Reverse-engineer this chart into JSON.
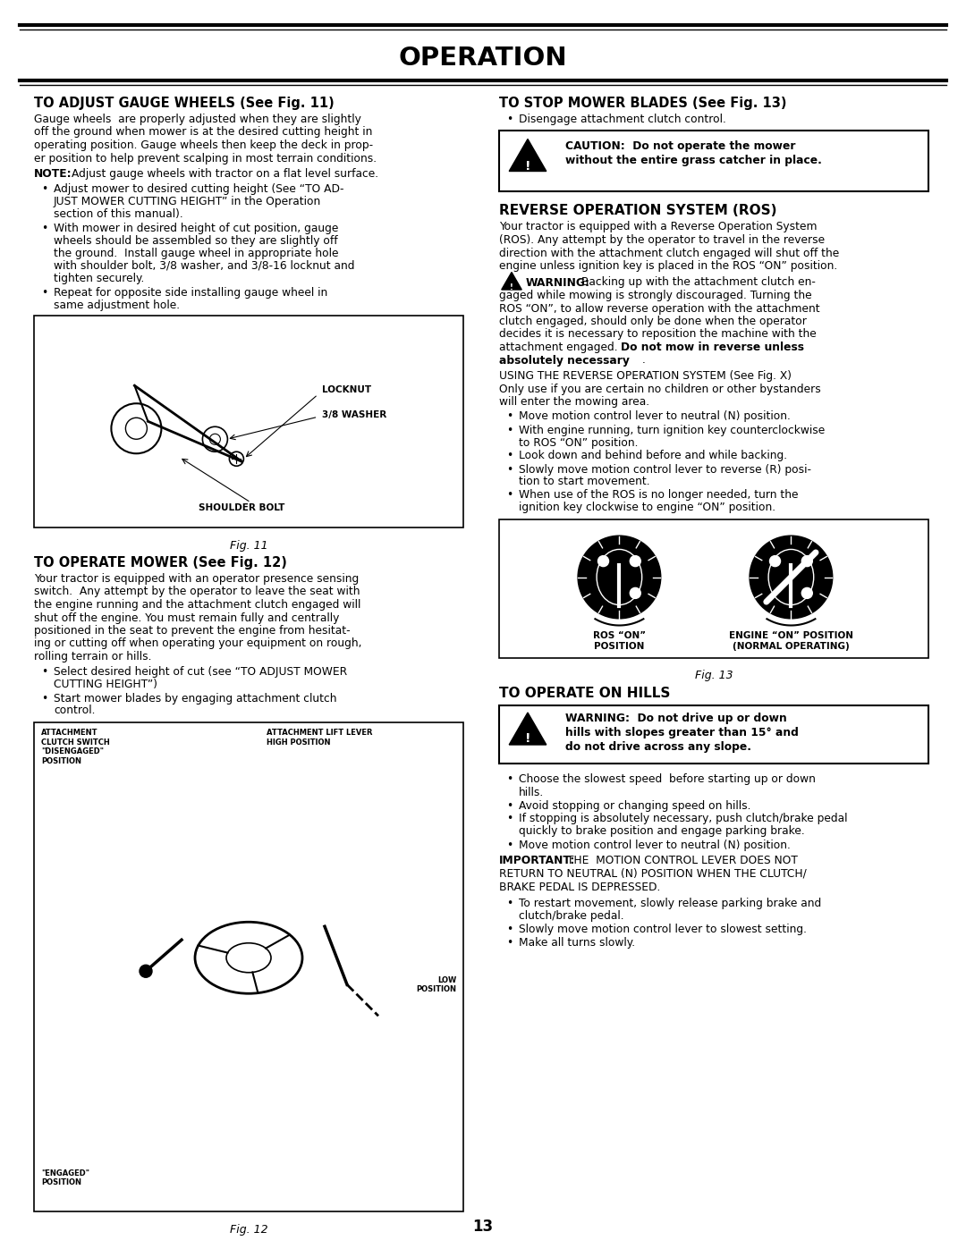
{
  "page_title": "OPERATION",
  "page_number": "13",
  "bg_color": "#ffffff",
  "section1_title": "TO ADJUST GAUGE WHEELS (See Fig. 11)",
  "section1_body_lines": [
    "Gauge wheels  are properly adjusted when they are slightly",
    "off the ground when mower is at the desired cutting height in",
    "operating position. Gauge wheels then keep the deck in prop-",
    "er position to help prevent scalping in most terrain conditions."
  ],
  "section1_note_bold": "NOTE:",
  "section1_note_rest": "Adjust gauge wheels with tractor on a flat level surface.",
  "section1_b1": [
    "Adjust mower to desired cutting height (See “TO AD-",
    "JUST MOWER CUTTING HEIGHT” in the Operation",
    "section of this manual)."
  ],
  "section1_b2": [
    "With mower in desired height of cut position, gauge",
    "wheels should be assembled so they are slightly off",
    "the ground.  Install gauge wheel in appropriate hole",
    "with shoulder bolt, 3/8 washer, and 3/8-16 locknut and",
    "tighten securely."
  ],
  "section1_b3": [
    "Repeat for opposite side installing gauge wheel in",
    "same adjustment hole."
  ],
  "fig11_caption": "Fig. 11",
  "section2_title": "TO OPERATE MOWER (See Fig. 12)",
  "section2_body_lines": [
    "Your tractor is equipped with an operator presence sensing",
    "switch.  Any attempt by the operator to leave the seat with",
    "the engine running and the attachment clutch engaged will",
    "shut off the engine. You must remain fully and centrally",
    "positioned in the seat to prevent the engine from hesitat-",
    "ing or cutting off when operating your equipment on rough,",
    "rolling terrain or hills."
  ],
  "section2_b1": [
    "Select desired height of cut (see “TO ADJUST MOWER",
    "CUTTING HEIGHT”)"
  ],
  "section2_b2": [
    "Start mower blades by engaging attachment clutch",
    "control."
  ],
  "fig12_caption": "Fig. 12",
  "section3_title": "TO STOP MOWER BLADES (See Fig. 13)",
  "section3_b1": "Disengage attachment clutch control.",
  "caution_line1": "CAUTION:  Do not operate the mower",
  "caution_line2": "without the entire grass catcher in place.",
  "section4_title": "REVERSE OPERATION SYSTEM (ROS)",
  "section4_body_lines": [
    "Your tractor is equipped with a Reverse Operation System",
    "(ROS). Any attempt by the operator to travel in the reverse",
    "direction with the attachment clutch engaged will shut off the",
    "engine unless ignition key is placed in the ROS “ON” position."
  ],
  "section4_warn_lines": [
    "gaged while mowing is strongly discouraged. Turning the",
    "ROS “ON”, to allow reverse operation with the attachment",
    "clutch engaged, should only be done when the operator",
    "decides it is necessary to reposition the machine with the",
    "attachment engaged.  "
  ],
  "section4_warn_bold": "Do not mow in reverse unless",
  "section4_warn_bold2": "absolutely necessary",
  "section4_using_lines": [
    "USING THE REVERSE OPERATION SYSTEM (See Fig. X)",
    "Only use if you are certain no children or other bystanders",
    "will enter the mowing area."
  ],
  "section4_bullets": [
    [
      "Move motion control lever to neutral (N) position."
    ],
    [
      "With engine running, turn ignition key counterclockwise",
      "to ROS “ON” position."
    ],
    [
      "Look down and behind before and while backing."
    ],
    [
      "Slowly move motion control lever to reverse (R) posi-",
      "tion to start movement."
    ],
    [
      "When use of the ROS is no longer needed, turn the",
      "ignition key clockwise to engine “ON” position."
    ]
  ],
  "fig13_caption": "Fig. 13",
  "fig13_label1_line1": "ROS “ON”",
  "fig13_label1_line2": "POSITION",
  "fig13_label2_line1": "ENGINE “ON” POSITION",
  "fig13_label2_line2": "(NORMAL OPERATING)",
  "section5_title": "TO OPERATE ON HILLS",
  "warn5_line1": "WARNING:  Do not drive up or down",
  "warn5_line2": "hills with slopes greater than 15° and",
  "warn5_line3": "do not drive across any slope.",
  "section5_bullets": [
    [
      "Choose the slowest speed  before starting up or down",
      "hills."
    ],
    [
      "Avoid stopping or changing speed on hills."
    ],
    [
      "If stopping is absolutely necessary, push clutch/brake pedal",
      "quickly to brake position and engage parking brake."
    ],
    [
      "Move motion control lever to neutral (N) position."
    ]
  ],
  "important_bold": "IMPORTANT:",
  "important_rest_lines": [
    " THE  MOTION CONTROL LEVER DOES NOT",
    "RETURN TO NEUTRAL (N) POSITION WHEN THE CLUTCH/",
    "BRAKE PEDAL IS DEPRESSED."
  ],
  "section5_b2": [
    [
      "To restart movement, slowly release parking brake and",
      "clutch/brake pedal."
    ],
    [
      "Slowly move motion control lever to slowest setting."
    ],
    [
      "Make all turns slowly."
    ]
  ]
}
